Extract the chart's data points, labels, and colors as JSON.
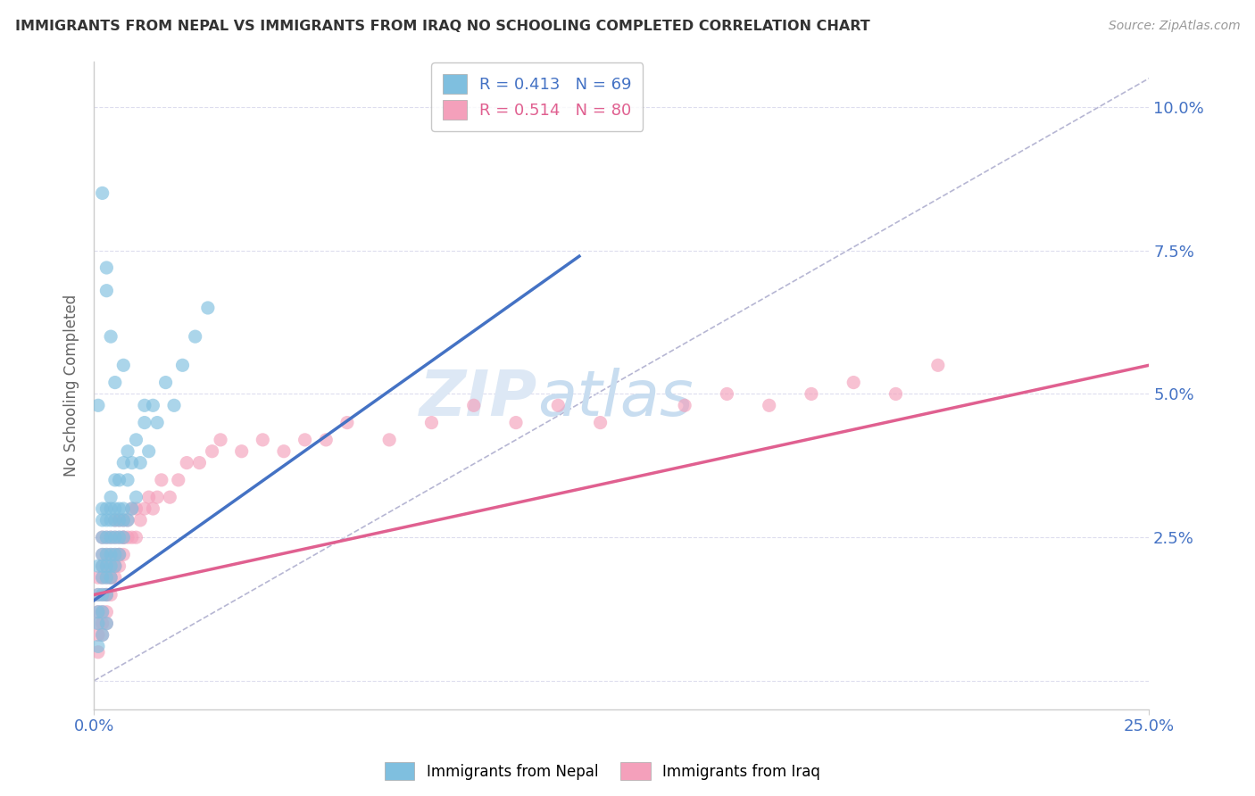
{
  "title": "IMMIGRANTS FROM NEPAL VS IMMIGRANTS FROM IRAQ NO SCHOOLING COMPLETED CORRELATION CHART",
  "source": "Source: ZipAtlas.com",
  "ylabel": "No Schooling Completed",
  "xlim": [
    0.0,
    0.25
  ],
  "ylim": [
    -0.005,
    0.108
  ],
  "yticks": [
    0.0,
    0.025,
    0.05,
    0.075,
    0.1
  ],
  "ytick_labels": [
    "",
    "2.5%",
    "5.0%",
    "7.5%",
    "10.0%"
  ],
  "xticks": [
    0.0,
    0.25
  ],
  "xtick_labels": [
    "0.0%",
    "25.0%"
  ],
  "nepal_color": "#7fbfdf",
  "iraq_color": "#f4a0bb",
  "nepal_line_color": "#4472c4",
  "iraq_line_color": "#e06090",
  "trend_line_nepal": {
    "x0": 0.0,
    "y0": 0.014,
    "x1": 0.115,
    "y1": 0.074
  },
  "trend_line_iraq": {
    "x0": 0.0,
    "y0": 0.015,
    "x1": 0.25,
    "y1": 0.055
  },
  "diagonal_color": "#aaaacc",
  "background_color": "#ffffff",
  "grid_color": "#ddddee",
  "watermark_color": "#dde8f5",
  "nepal_x": [
    0.001,
    0.001,
    0.001,
    0.001,
    0.002,
    0.002,
    0.002,
    0.002,
    0.002,
    0.002,
    0.002,
    0.002,
    0.003,
    0.003,
    0.003,
    0.003,
    0.003,
    0.003,
    0.003,
    0.004,
    0.004,
    0.004,
    0.004,
    0.004,
    0.004,
    0.004,
    0.005,
    0.005,
    0.005,
    0.005,
    0.005,
    0.005,
    0.006,
    0.006,
    0.006,
    0.006,
    0.006,
    0.007,
    0.007,
    0.007,
    0.007,
    0.008,
    0.008,
    0.008,
    0.009,
    0.009,
    0.01,
    0.01,
    0.011,
    0.012,
    0.013,
    0.014,
    0.015,
    0.017,
    0.019,
    0.021,
    0.024,
    0.027,
    0.001,
    0.002,
    0.003,
    0.002,
    0.003,
    0.004,
    0.005,
    0.003,
    0.007,
    0.012,
    0.001
  ],
  "nepal_y": [
    0.01,
    0.012,
    0.015,
    0.02,
    0.012,
    0.015,
    0.018,
    0.02,
    0.022,
    0.025,
    0.028,
    0.03,
    0.015,
    0.018,
    0.02,
    0.022,
    0.025,
    0.028,
    0.03,
    0.018,
    0.02,
    0.022,
    0.025,
    0.028,
    0.03,
    0.032,
    0.02,
    0.022,
    0.025,
    0.028,
    0.03,
    0.035,
    0.022,
    0.025,
    0.028,
    0.03,
    0.035,
    0.025,
    0.028,
    0.03,
    0.038,
    0.028,
    0.035,
    0.04,
    0.03,
    0.038,
    0.032,
    0.042,
    0.038,
    0.045,
    0.04,
    0.048,
    0.045,
    0.052,
    0.048,
    0.055,
    0.06,
    0.065,
    0.006,
    0.008,
    0.01,
    0.085,
    0.072,
    0.06,
    0.052,
    0.068,
    0.055,
    0.048,
    0.048
  ],
  "iraq_x": [
    0.001,
    0.001,
    0.001,
    0.001,
    0.001,
    0.001,
    0.002,
    0.002,
    0.002,
    0.002,
    0.002,
    0.002,
    0.002,
    0.002,
    0.003,
    0.003,
    0.003,
    0.003,
    0.003,
    0.003,
    0.003,
    0.004,
    0.004,
    0.004,
    0.004,
    0.004,
    0.005,
    0.005,
    0.005,
    0.005,
    0.005,
    0.006,
    0.006,
    0.006,
    0.006,
    0.007,
    0.007,
    0.007,
    0.008,
    0.008,
    0.009,
    0.009,
    0.01,
    0.01,
    0.011,
    0.012,
    0.013,
    0.014,
    0.015,
    0.016,
    0.018,
    0.02,
    0.022,
    0.025,
    0.028,
    0.03,
    0.035,
    0.04,
    0.045,
    0.05,
    0.055,
    0.06,
    0.07,
    0.08,
    0.09,
    0.1,
    0.11,
    0.12,
    0.14,
    0.15,
    0.16,
    0.17,
    0.18,
    0.19,
    0.003,
    0.004,
    0.005,
    0.006,
    0.007,
    0.2
  ],
  "iraq_y": [
    0.005,
    0.008,
    0.01,
    0.012,
    0.015,
    0.018,
    0.008,
    0.01,
    0.012,
    0.015,
    0.018,
    0.02,
    0.022,
    0.025,
    0.01,
    0.012,
    0.015,
    0.018,
    0.02,
    0.022,
    0.025,
    0.015,
    0.018,
    0.02,
    0.022,
    0.025,
    0.018,
    0.02,
    0.022,
    0.025,
    0.028,
    0.02,
    0.022,
    0.025,
    0.028,
    0.022,
    0.025,
    0.028,
    0.025,
    0.028,
    0.025,
    0.03,
    0.025,
    0.03,
    0.028,
    0.03,
    0.032,
    0.03,
    0.032,
    0.035,
    0.032,
    0.035,
    0.038,
    0.038,
    0.04,
    0.042,
    0.04,
    0.042,
    0.04,
    0.042,
    0.042,
    0.045,
    0.042,
    0.045,
    0.048,
    0.045,
    0.048,
    0.045,
    0.048,
    0.05,
    0.048,
    0.05,
    0.052,
    0.05,
    0.015,
    0.018,
    0.02,
    0.022,
    0.025,
    0.055
  ]
}
